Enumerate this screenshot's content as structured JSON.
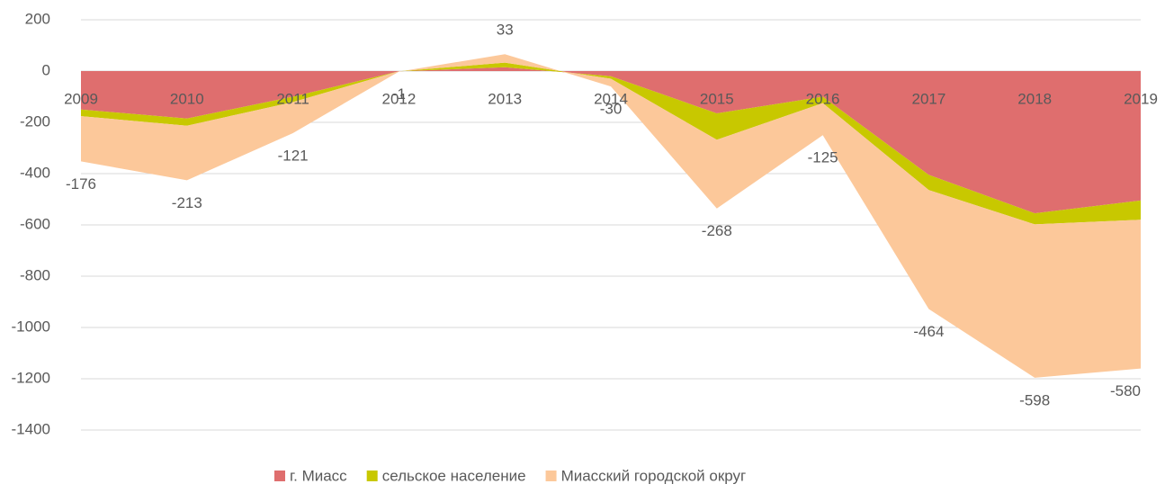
{
  "chart_data": {
    "type": "stacked_area",
    "categories": [
      "2009",
      "2010",
      "2011",
      "2012",
      "2013",
      "2014",
      "2015",
      "2016",
      "2017",
      "2018",
      "2019"
    ],
    "series": [
      {
        "name": "г. Миасс",
        "color": "#df6e6e",
        "values": [
          -150,
          -185,
          -100,
          -1,
          15,
          -20,
          -165,
          -100,
          -405,
          -555,
          -505
        ]
      },
      {
        "name": "сельское население",
        "color": "#c8c800",
        "values": [
          -26,
          -28,
          -21,
          0,
          18,
          -10,
          -103,
          -25,
          -59,
          -43,
          -75
        ]
      },
      {
        "name": "Миасский городской округ",
        "color": "#fcc89a",
        "values": [
          -176,
          -213,
          -121,
          -1,
          33,
          -30,
          -268,
          -125,
          -464,
          -598,
          -580
        ]
      }
    ],
    "ylim": [
      -1400,
      200
    ],
    "yticks": [
      -1400,
      -1200,
      -1000,
      -800,
      -600,
      -400,
      -200,
      0,
      200
    ],
    "grid": true,
    "legend": "bottom"
  }
}
